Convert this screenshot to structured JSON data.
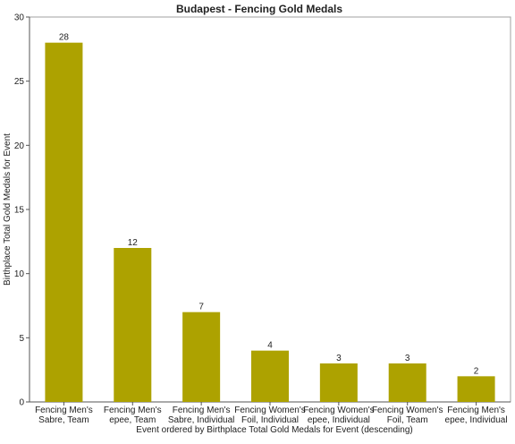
{
  "chart_data": {
    "type": "bar",
    "title": "Budapest - Fencing Gold Medals",
    "xlabel": "Event ordered by Birthplace Total Gold Medals for Event (descending)",
    "ylabel": "Birthplace Total Gold Medals for Event",
    "ylim": [
      0,
      30
    ],
    "yticks": [
      0,
      5,
      10,
      15,
      20,
      25,
      30
    ],
    "grid": false,
    "bar_color": "#ADA200",
    "categories": [
      [
        "Fencing Men's",
        "Sabre, Team"
      ],
      [
        "Fencing Men's",
        "epee, Team"
      ],
      [
        "Fencing Men's",
        "Sabre, Individual"
      ],
      [
        "Fencing Women's",
        "Foil, Individual"
      ],
      [
        "Fencing Women's",
        "epee, Individual"
      ],
      [
        "Fencing Women's",
        "Foil, Team"
      ],
      [
        "Fencing Men's",
        "epee, Individual"
      ]
    ],
    "values": [
      28,
      12,
      7,
      4,
      3,
      3,
      2
    ]
  }
}
